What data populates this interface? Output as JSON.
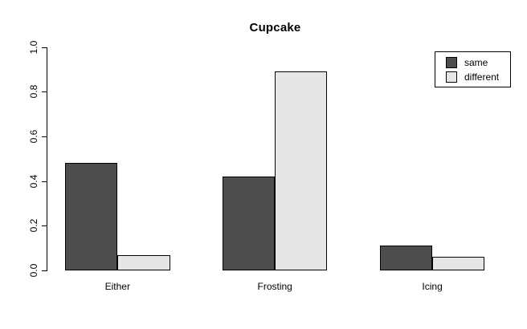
{
  "title": "Cupcake",
  "chart_data": {
    "type": "bar",
    "beside": true,
    "title": "Cupcake",
    "xlabel": "",
    "ylabel": "",
    "categories": [
      "Either",
      "Frosting",
      "Icing"
    ],
    "series": [
      {
        "name": "same",
        "color": "#4D4D4D",
        "values": [
          0.48,
          0.42,
          0.11
        ]
      },
      {
        "name": "different",
        "color": "#E6E6E6",
        "values": [
          0.07,
          0.89,
          0.06
        ]
      }
    ],
    "ylim": [
      0,
      1.0
    ],
    "yticks": [
      0.0,
      0.2,
      0.4,
      0.6,
      0.8,
      1.0
    ],
    "ytick_labels": [
      "0.0",
      "0.2",
      "0.4",
      "0.6",
      "0.8",
      "1.0"
    ],
    "grid": false,
    "legend_position": "top-right",
    "bar_border_color": "#000000",
    "axis_color": "#000000",
    "background": "#FFFFFF"
  },
  "legend": {
    "items": [
      {
        "label": "same",
        "color": "#4D4D4D"
      },
      {
        "label": "different",
        "color": "#E6E6E6"
      }
    ]
  }
}
